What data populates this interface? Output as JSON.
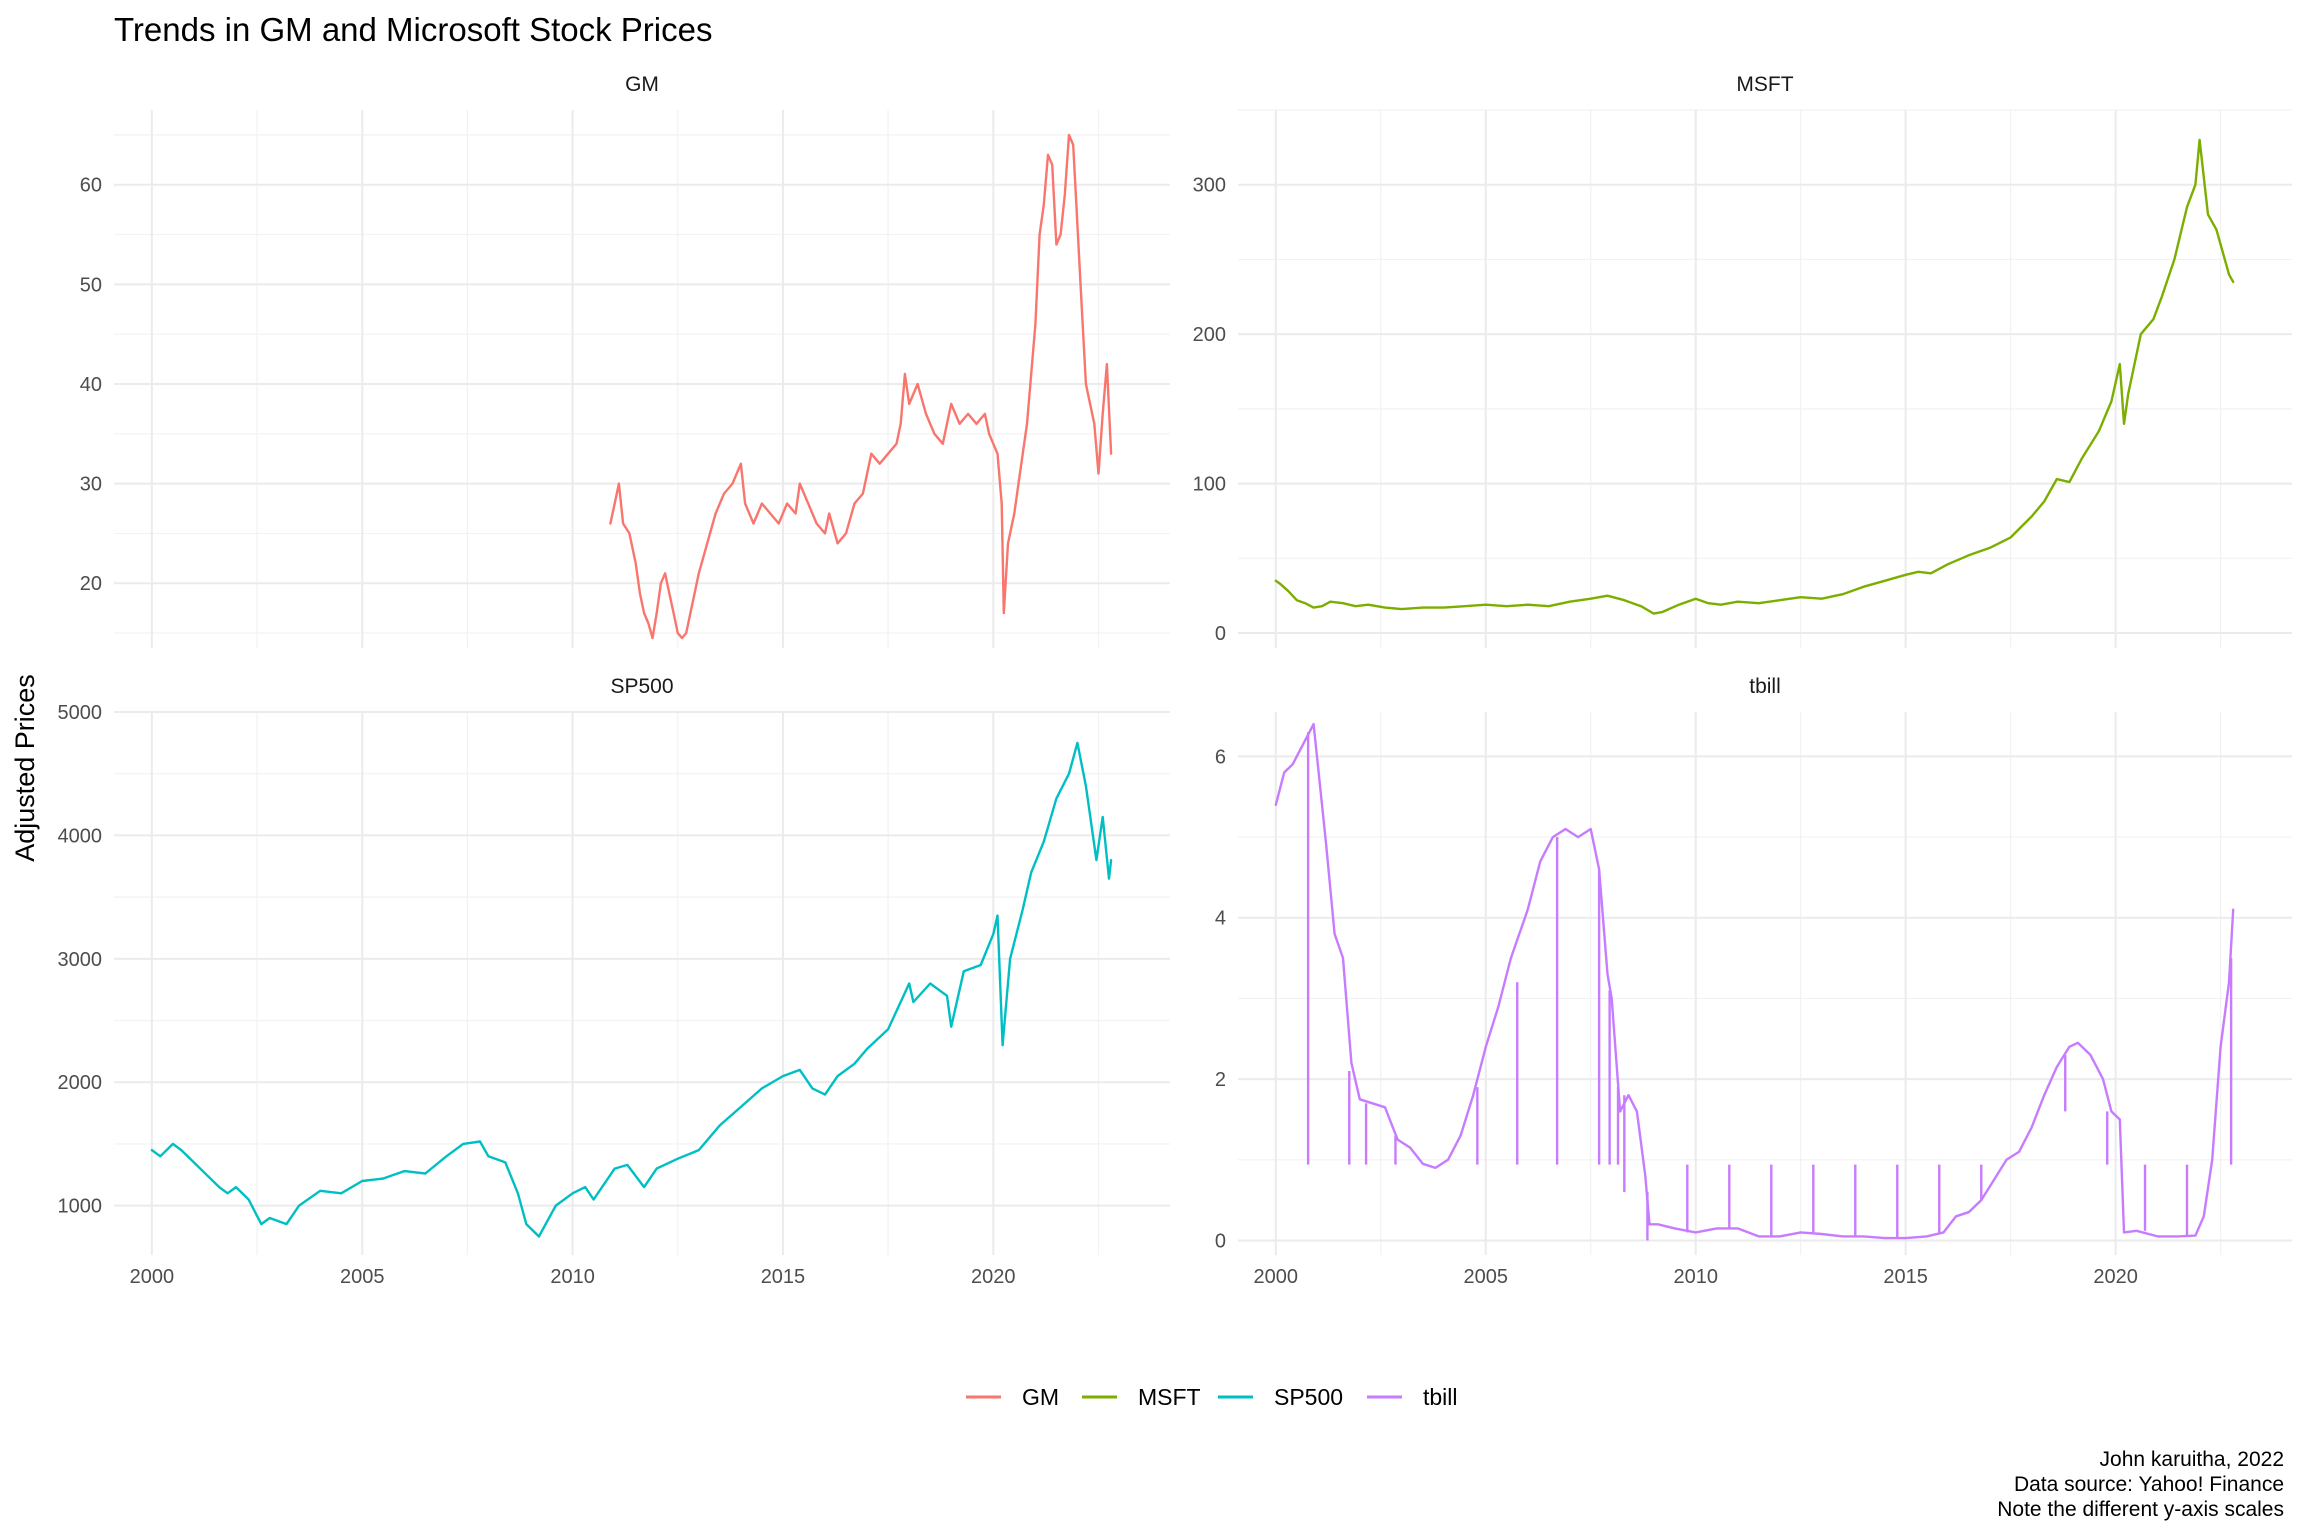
{
  "chart_data": {
    "type": "line",
    "title": "Trends in GM and Microsoft Stock Prices",
    "ylabel": "Adjusted Prices",
    "xlabel": "",
    "grid": true,
    "legend_position": "bottom",
    "legend": [
      {
        "name": "GM",
        "color": "#F8766D"
      },
      {
        "name": "MSFT",
        "color": "#7CAE00"
      },
      {
        "name": "SP500",
        "color": "#00BFC4"
      },
      {
        "name": "tbill",
        "color": "#C77CFF"
      }
    ],
    "caption": [
      "John karuitha, 2022",
      "Data source: Yahoo! Finance",
      "Note the different y-axis scales"
    ],
    "x_ticks": [
      2000,
      2005,
      2010,
      2015,
      2020
    ],
    "xlim": [
      1999.1,
      2024.2
    ],
    "panels": [
      {
        "name": "GM",
        "color": "#F8766D",
        "ylim": [
          13.5,
          67.5
        ],
        "y_ticks": [
          20,
          30,
          40,
          50,
          60
        ],
        "x": [
          2010.9,
          2011.0,
          2011.1,
          2011.2,
          2011.35,
          2011.5,
          2011.6,
          2011.7,
          2011.8,
          2011.9,
          2012.0,
          2012.1,
          2012.2,
          2012.3,
          2012.4,
          2012.5,
          2012.6,
          2012.7,
          2012.8,
          2012.9,
          2013.0,
          2013.2,
          2013.4,
          2013.6,
          2013.8,
          2014.0,
          2014.1,
          2014.3,
          2014.5,
          2014.7,
          2014.9,
          2015.1,
          2015.3,
          2015.4,
          2015.6,
          2015.8,
          2016.0,
          2016.1,
          2016.3,
          2016.5,
          2016.7,
          2016.9,
          2017.1,
          2017.3,
          2017.5,
          2017.7,
          2017.8,
          2017.9,
          2018.0,
          2018.2,
          2018.4,
          2018.6,
          2018.8,
          2018.9,
          2019.0,
          2019.2,
          2019.4,
          2019.6,
          2019.8,
          2019.9,
          2020.0,
          2020.1,
          2020.2,
          2020.25,
          2020.35,
          2020.5,
          2020.6,
          2020.8,
          2020.9,
          2021.0,
          2021.1,
          2021.2,
          2021.3,
          2021.4,
          2021.5,
          2021.6,
          2021.7,
          2021.8,
          2021.9,
          2022.0,
          2022.1,
          2022.2,
          2022.3,
          2022.4,
          2022.5,
          2022.6,
          2022.7,
          2022.8
        ],
        "y": [
          26,
          28,
          30,
          26,
          25,
          22,
          19,
          17,
          16,
          14.5,
          17,
          20,
          21,
          19,
          17,
          15,
          14.5,
          15,
          17,
          19,
          21,
          24,
          27,
          29,
          30,
          32,
          28,
          26,
          28,
          27,
          26,
          28,
          27,
          30,
          28,
          26,
          25,
          27,
          24,
          25,
          28,
          29,
          33,
          32,
          33,
          34,
          36,
          41,
          38,
          40,
          37,
          35,
          34,
          36,
          38,
          36,
          37,
          36,
          37,
          35,
          34,
          33,
          28,
          17,
          24,
          27,
          30,
          36,
          41,
          46,
          55,
          58,
          63,
          62,
          54,
          55,
          59,
          65,
          64,
          56,
          48,
          40,
          38,
          36,
          31,
          37,
          42,
          33
        ],
        "gaps": []
      },
      {
        "name": "MSFT",
        "color": "#7CAE00",
        "ylim": [
          -10,
          350
        ],
        "y_ticks": [
          0,
          100,
          200,
          300
        ],
        "x": [
          2000.0,
          2000.1,
          2000.3,
          2000.5,
          2000.7,
          2000.9,
          2001.1,
          2001.3,
          2001.6,
          2001.9,
          2002.2,
          2002.6,
          2003.0,
          2003.5,
          2004.0,
          2004.5,
          2005.0,
          2005.5,
          2006.0,
          2006.5,
          2007.0,
          2007.5,
          2007.9,
          2008.3,
          2008.7,
          2009.0,
          2009.2,
          2009.6,
          2010.0,
          2010.3,
          2010.6,
          2011.0,
          2011.5,
          2012.0,
          2012.5,
          2013.0,
          2013.5,
          2014.0,
          2014.5,
          2015.0,
          2015.3,
          2015.6,
          2016.0,
          2016.5,
          2017.0,
          2017.5,
          2018.0,
          2018.3,
          2018.6,
          2018.9,
          2019.2,
          2019.6,
          2019.9,
          2020.1,
          2020.2,
          2020.3,
          2020.6,
          2020.9,
          2021.1,
          2021.4,
          2021.7,
          2021.9,
          2022.0,
          2022.2,
          2022.4,
          2022.6,
          2022.7,
          2022.8
        ],
        "y": [
          35,
          33,
          28,
          22,
          20,
          17,
          18,
          21,
          20,
          18,
          19,
          17,
          16,
          17,
          17,
          18,
          19,
          18,
          19,
          18,
          21,
          23,
          25,
          22,
          18,
          13,
          14,
          19,
          23,
          20,
          19,
          21,
          20,
          22,
          24,
          23,
          26,
          31,
          35,
          39,
          41,
          40,
          46,
          52,
          57,
          64,
          78,
          88,
          103,
          101,
          117,
          135,
          155,
          180,
          140,
          160,
          200,
          210,
          225,
          250,
          285,
          300,
          330,
          280,
          270,
          250,
          240,
          235
        ],
        "gaps": []
      },
      {
        "name": "SP500",
        "color": "#00BFC4",
        "ylim": [
          600,
          5000
        ],
        "y_ticks": [
          1000,
          2000,
          3000,
          4000,
          5000
        ],
        "x": [
          2000.0,
          2000.2,
          2000.5,
          2000.7,
          2001.0,
          2001.3,
          2001.6,
          2001.8,
          2002.0,
          2002.3,
          2002.6,
          2002.8,
          2003.2,
          2003.5,
          2004.0,
          2004.5,
          2005.0,
          2005.5,
          2006.0,
          2006.5,
          2007.0,
          2007.4,
          2007.8,
          2008.0,
          2008.4,
          2008.7,
          2008.9,
          2009.2,
          2009.6,
          2010.0,
          2010.3,
          2010.5,
          2011.0,
          2011.3,
          2011.7,
          2012.0,
          2012.5,
          2013.0,
          2013.5,
          2014.0,
          2014.5,
          2015.0,
          2015.4,
          2015.7,
          2016.0,
          2016.3,
          2016.7,
          2017.0,
          2017.5,
          2018.0,
          2018.1,
          2018.5,
          2018.9,
          2019.0,
          2019.3,
          2019.7,
          2020.0,
          2020.1,
          2020.22,
          2020.4,
          2020.7,
          2020.9,
          2021.2,
          2021.5,
          2021.8,
          2022.0,
          2022.2,
          2022.45,
          2022.6,
          2022.75,
          2022.8
        ],
        "y": [
          1450,
          1400,
          1500,
          1450,
          1350,
          1250,
          1150,
          1100,
          1150,
          1050,
          850,
          900,
          850,
          1000,
          1120,
          1100,
          1200,
          1220,
          1280,
          1260,
          1400,
          1500,
          1520,
          1400,
          1350,
          1100,
          850,
          750,
          1000,
          1100,
          1150,
          1050,
          1300,
          1330,
          1150,
          1300,
          1380,
          1450,
          1650,
          1800,
          1950,
          2050,
          2100,
          1950,
          1900,
          2050,
          2150,
          2270,
          2430,
          2800,
          2650,
          2800,
          2700,
          2450,
          2900,
          2950,
          3200,
          3350,
          2300,
          3000,
          3400,
          3700,
          3950,
          4300,
          4500,
          4750,
          4400,
          3800,
          4150,
          3650,
          3800
        ],
        "gaps": []
      },
      {
        "name": "tbill",
        "color": "#C77CFF",
        "ylim": [
          -0.18,
          6.55
        ],
        "y_ticks": [
          0,
          2,
          4,
          6
        ],
        "x": [
          2000.0,
          2000.2,
          2000.4,
          2000.6,
          2000.8,
          2000.9,
          2001.0,
          2001.2,
          2001.4,
          2001.6,
          2001.8,
          2002.0,
          2002.3,
          2002.6,
          2002.9,
          2003.2,
          2003.5,
          2003.8,
          2004.1,
          2004.4,
          2004.7,
          2005.0,
          2005.3,
          2005.6,
          2006.0,
          2006.3,
          2006.6,
          2006.9,
          2007.2,
          2007.5,
          2007.7,
          2007.9,
          2008.0,
          2008.2,
          2008.4,
          2008.6,
          2008.8,
          2008.9,
          2009.1,
          2009.5,
          2010.0,
          2010.5,
          2011.0,
          2011.5,
          2012.0,
          2012.5,
          2013.0,
          2013.5,
          2014.0,
          2014.5,
          2015.0,
          2015.5,
          2015.9,
          2016.2,
          2016.5,
          2016.8,
          2017.1,
          2017.4,
          2017.7,
          2018.0,
          2018.3,
          2018.6,
          2018.9,
          2019.1,
          2019.4,
          2019.7,
          2019.9,
          2020.1,
          2020.2,
          2020.5,
          2021.0,
          2021.5,
          2021.9,
          2022.1,
          2022.3,
          2022.5,
          2022.7,
          2022.8
        ],
        "y": [
          5.4,
          5.8,
          5.9,
          6.1,
          6.3,
          6.4,
          5.9,
          4.9,
          3.8,
          3.5,
          2.2,
          1.75,
          1.7,
          1.65,
          1.25,
          1.15,
          0.95,
          0.9,
          1.0,
          1.3,
          1.8,
          2.4,
          2.9,
          3.5,
          4.1,
          4.7,
          5.0,
          5.1,
          5.0,
          5.1,
          4.6,
          3.3,
          3.0,
          1.6,
          1.8,
          1.6,
          0.8,
          0.2,
          0.2,
          0.15,
          0.1,
          0.15,
          0.15,
          0.05,
          0.05,
          0.1,
          0.08,
          0.05,
          0.05,
          0.03,
          0.03,
          0.05,
          0.1,
          0.3,
          0.35,
          0.5,
          0.75,
          1.0,
          1.1,
          1.4,
          1.8,
          2.15,
          2.4,
          2.45,
          2.3,
          2.0,
          1.6,
          1.5,
          0.1,
          0.12,
          0.05,
          0.05,
          0.06,
          0.3,
          1.0,
          2.4,
          3.2,
          4.1
        ],
        "gaps": [
          [
            2000.77,
            6.3,
            0.94
          ],
          [
            2001.75,
            2.1,
            0.94
          ],
          [
            2002.15,
            1.7,
            0.94
          ],
          [
            2002.85,
            1.3,
            0.94
          ],
          [
            2004.8,
            1.9,
            0.94
          ],
          [
            2005.75,
            3.2,
            0.94
          ],
          [
            2006.7,
            5.0,
            0.94
          ],
          [
            2007.7,
            4.6,
            0.94
          ],
          [
            2007.95,
            3.1,
            0.94
          ],
          [
            2008.15,
            1.9,
            0.94
          ],
          [
            2008.3,
            1.8,
            0.6
          ],
          [
            2008.85,
            0.6,
            0.0
          ],
          [
            2009.8,
            0.1,
            0.94
          ],
          [
            2010.8,
            0.15,
            0.94
          ],
          [
            2011.8,
            0.05,
            0.94
          ],
          [
            2012.8,
            0.1,
            0.94
          ],
          [
            2013.8,
            0.05,
            0.94
          ],
          [
            2014.8,
            0.03,
            0.94
          ],
          [
            2015.8,
            0.08,
            0.94
          ],
          [
            2016.8,
            0.5,
            0.94
          ],
          [
            2018.8,
            2.3,
            1.6
          ],
          [
            2019.8,
            1.6,
            0.94
          ],
          [
            2020.7,
            0.12,
            0.94
          ],
          [
            2021.7,
            0.05,
            0.94
          ],
          [
            2022.75,
            3.5,
            0.94
          ]
        ]
      }
    ]
  }
}
